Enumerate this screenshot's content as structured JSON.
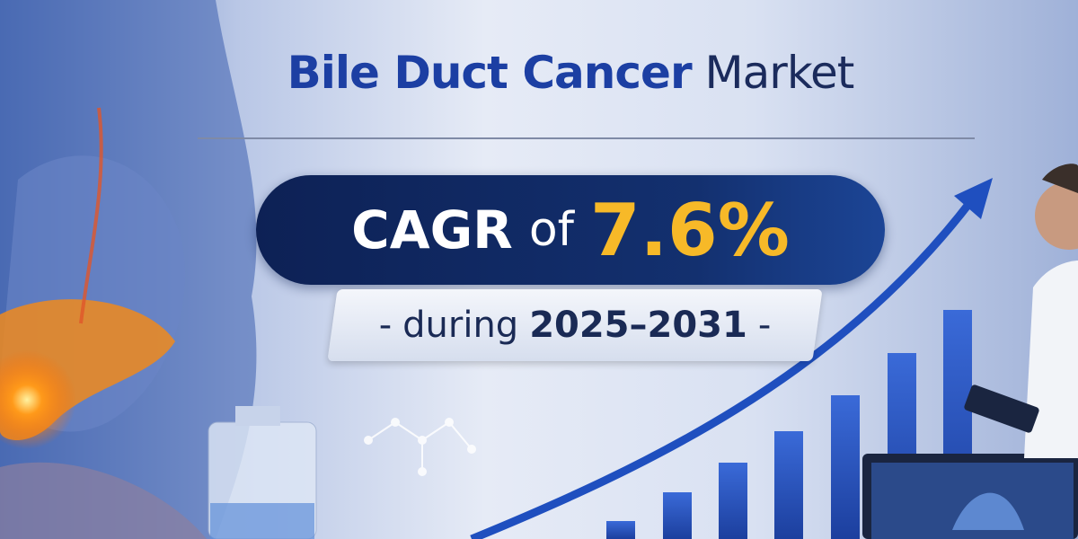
{
  "title": {
    "highlight": "Bile Duct Cancer",
    "rest": "Market"
  },
  "cagr": {
    "label": "CAGR",
    "connector": "of",
    "value": "7.6%"
  },
  "period": {
    "dash_left": "-",
    "prefix": "during",
    "years": "2025–2031",
    "dash_right": "-"
  },
  "colors": {
    "title_blue": "#1c3fa3",
    "navy": "#0d2155",
    "accent_yellow": "#f7b928",
    "bars": "#2a56c6"
  },
  "illustration": {
    "bar_levels": [
      1,
      2,
      3,
      4,
      5,
      6,
      7
    ],
    "trend": "rising-arrow"
  }
}
